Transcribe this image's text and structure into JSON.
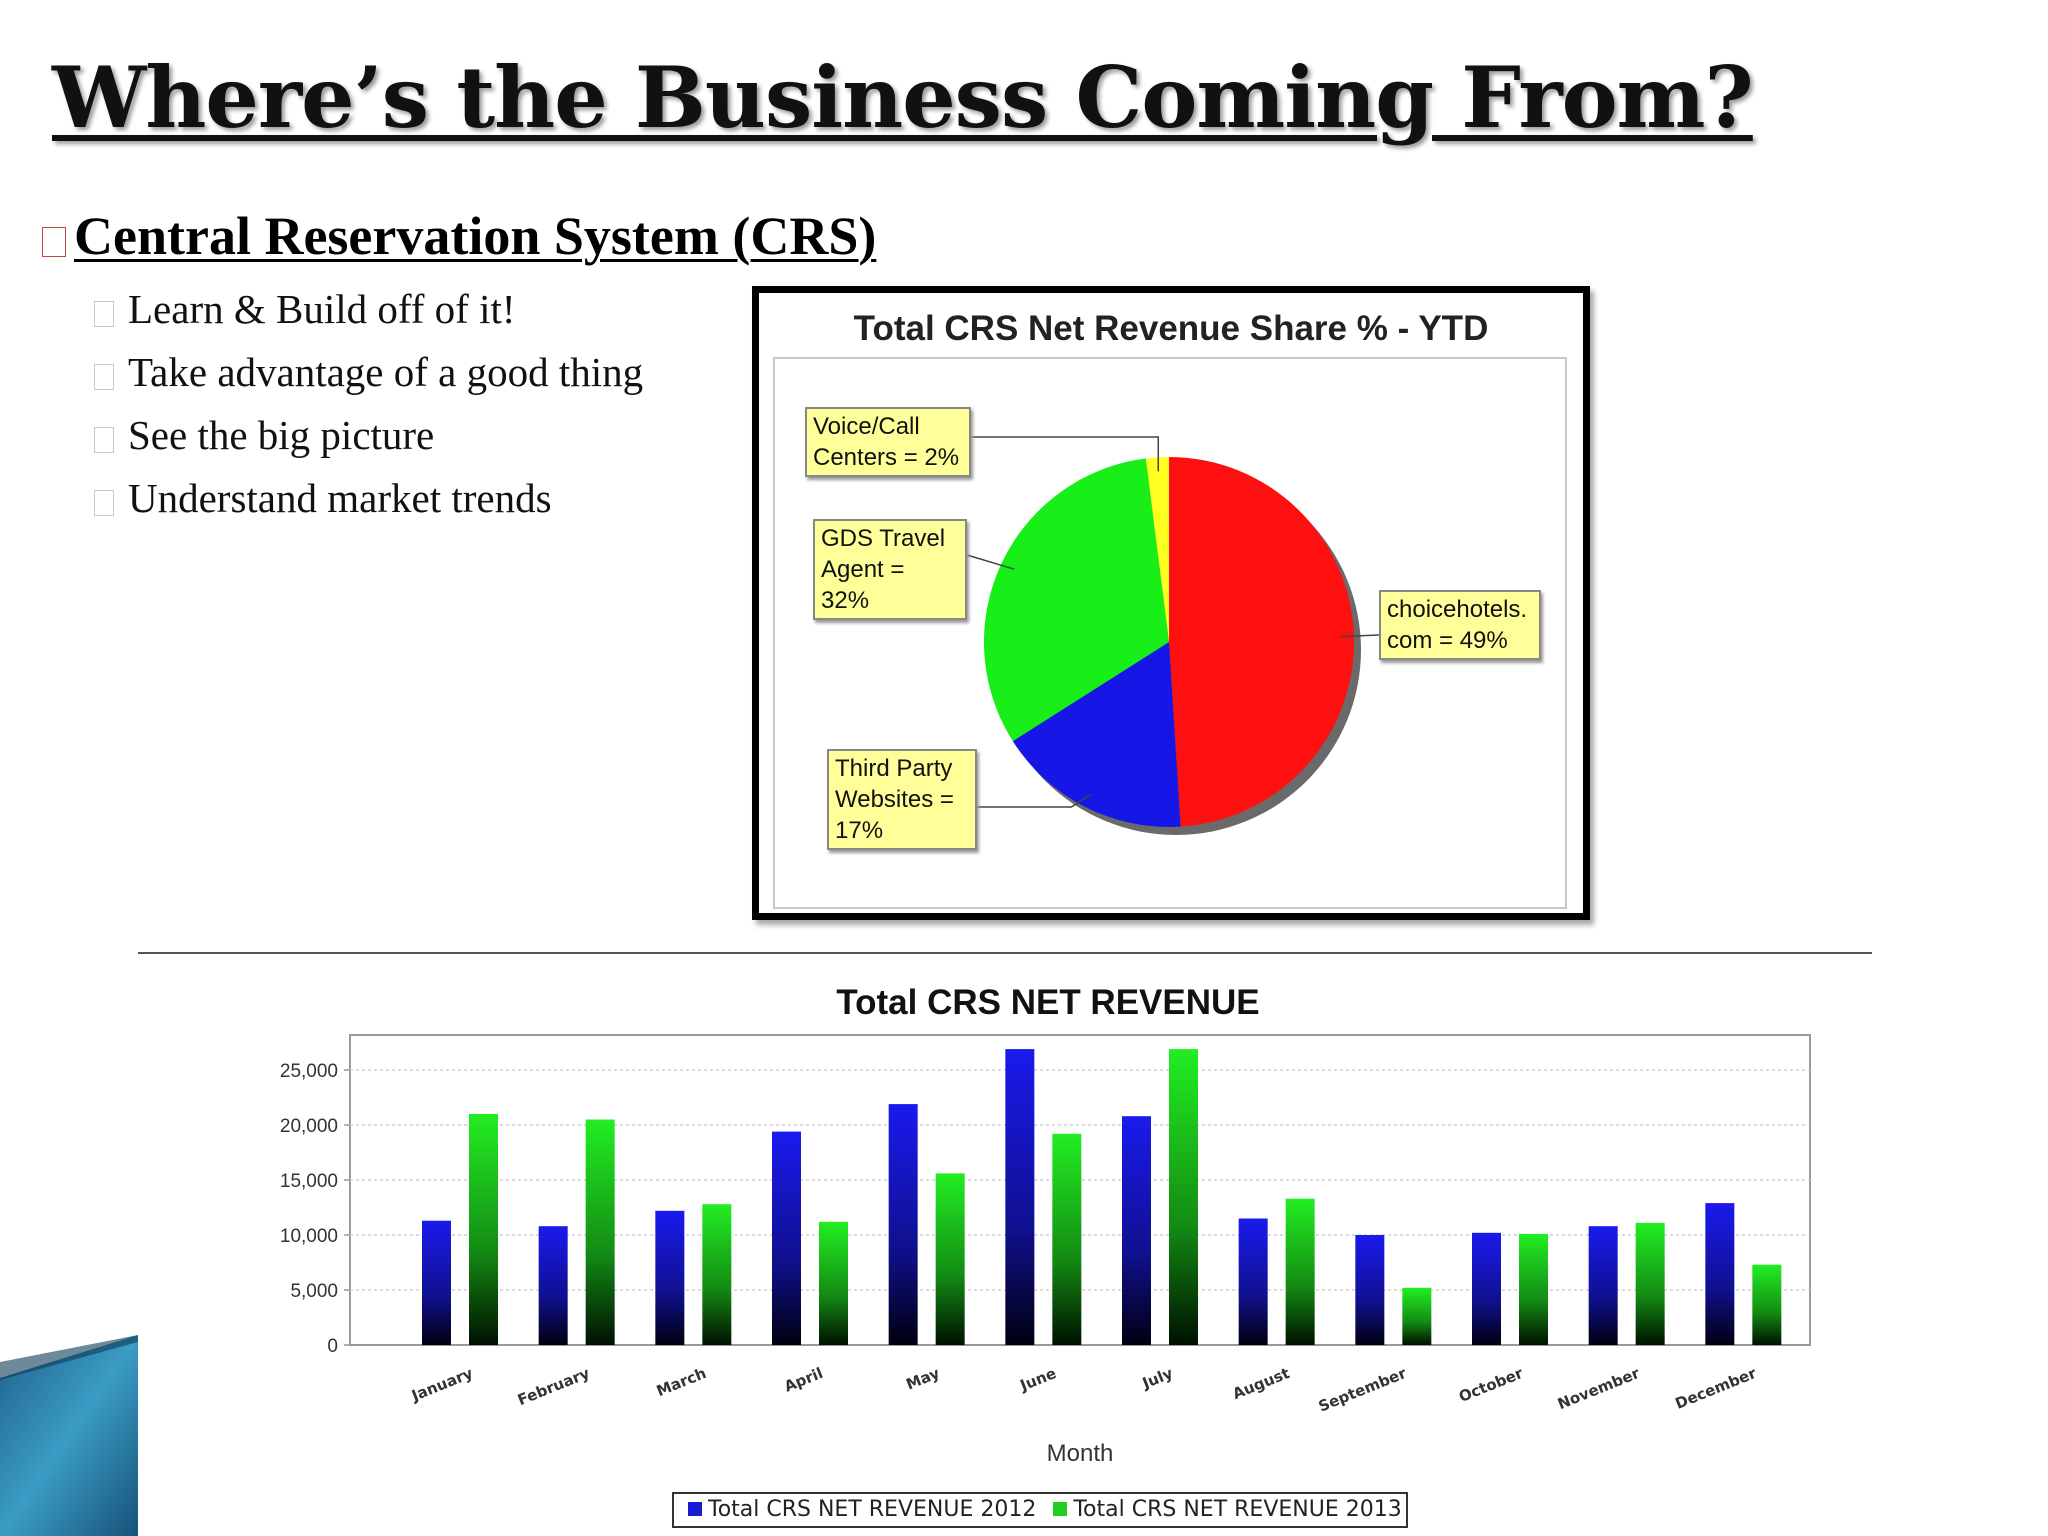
{
  "slide": {
    "title": "Where’s the Business Coming From?",
    "heading": "Central Reservation System (CRS)",
    "bullets": [
      "Learn & Build off of it!",
      "Take advantage of a good thing",
      "See the big picture",
      "Understand market trends"
    ]
  },
  "colors": {
    "red": "#ff1010",
    "green": "#18ee18",
    "blue": "#1616e6",
    "yellow": "#ffff22",
    "series_2012": "#1a1ad0",
    "series_2013": "#22cc22",
    "label_bg": "#ffff99"
  },
  "chart_data": [
    {
      "type": "pie",
      "title": "Total CRS Net Revenue Share % - YTD",
      "slices": [
        {
          "key": "choice",
          "label": "choicehotels.\ncom = 49%",
          "value": 49,
          "color": "#ff1010"
        },
        {
          "key": "third",
          "label": "Third Party\nWebsites =\n17%",
          "value": 17,
          "color": "#1616e6"
        },
        {
          "key": "gds",
          "label": "GDS Travel\nAgent = 32%",
          "value": 32,
          "color": "#18ee18"
        },
        {
          "key": "voice",
          "label": "Voice/Call\nCenters = 2%",
          "value": 2,
          "color": "#ffff22"
        }
      ]
    },
    {
      "type": "bar",
      "title": "Total CRS NET REVENUE",
      "xlabel": "Month",
      "ylabel": "",
      "categories": [
        "January",
        "February",
        "March",
        "April",
        "May",
        "June",
        "July",
        "August",
        "September",
        "October",
        "November",
        "December"
      ],
      "series": [
        {
          "name": "Total CRS NET REVENUE 2012",
          "values": [
            11300,
            10800,
            12200,
            19400,
            21900,
            26900,
            20800,
            11500,
            10000,
            10200,
            10800,
            12900
          ]
        },
        {
          "name": "Total CRS NET REVENUE 2013",
          "values": [
            21000,
            20500,
            12800,
            11200,
            15600,
            19200,
            26900,
            13300,
            5200,
            10100,
            11100,
            7300
          ]
        }
      ],
      "yticks": [
        "0",
        "5,000",
        "10,000",
        "15,000",
        "20,000",
        "25,000"
      ],
      "ylim": [
        0,
        28500
      ],
      "grid": true,
      "legend_position": "bottom"
    }
  ]
}
